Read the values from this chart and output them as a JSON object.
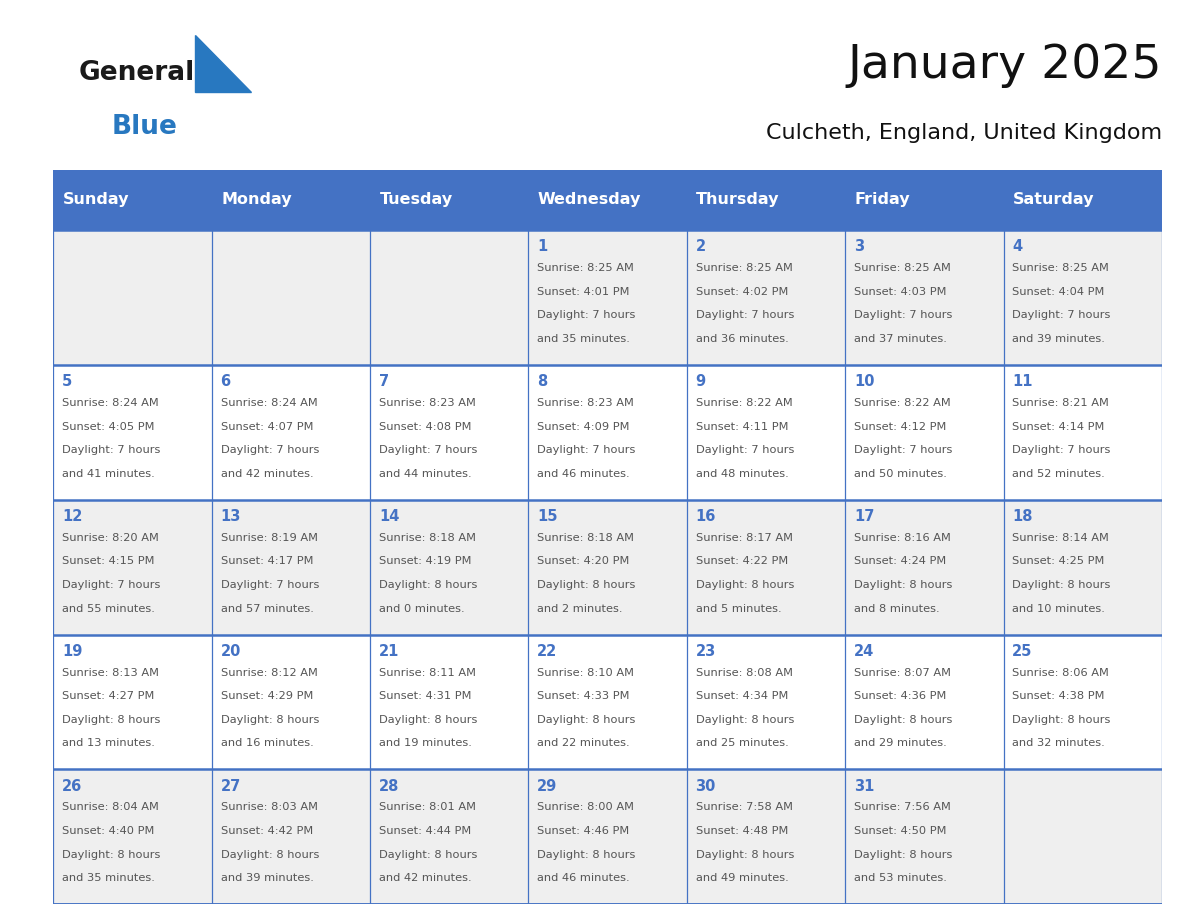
{
  "title": "January 2025",
  "subtitle": "Culcheth, England, United Kingdom",
  "header_bg_color": "#4472C4",
  "header_text_color": "#FFFFFF",
  "row_bg_light": "#EFEFEF",
  "row_bg_white": "#FFFFFF",
  "border_color": "#4472C4",
  "text_color": "#555555",
  "day_num_color": "#4472C4",
  "days_of_week": [
    "Sunday",
    "Monday",
    "Tuesday",
    "Wednesday",
    "Thursday",
    "Friday",
    "Saturday"
  ],
  "logo_general_color": "#1a1a1a",
  "logo_blue_color": "#2878C0",
  "calendar_data": [
    [
      {
        "day": "",
        "sunrise": "",
        "sunset": "",
        "daylight_h": "",
        "daylight_m": ""
      },
      {
        "day": "",
        "sunrise": "",
        "sunset": "",
        "daylight_h": "",
        "daylight_m": ""
      },
      {
        "day": "",
        "sunrise": "",
        "sunset": "",
        "daylight_h": "",
        "daylight_m": ""
      },
      {
        "day": "1",
        "sunrise": "8:25 AM",
        "sunset": "4:01 PM",
        "daylight_h": "7 hours",
        "daylight_m": "and 35 minutes."
      },
      {
        "day": "2",
        "sunrise": "8:25 AM",
        "sunset": "4:02 PM",
        "daylight_h": "7 hours",
        "daylight_m": "and 36 minutes."
      },
      {
        "day": "3",
        "sunrise": "8:25 AM",
        "sunset": "4:03 PM",
        "daylight_h": "7 hours",
        "daylight_m": "and 37 minutes."
      },
      {
        "day": "4",
        "sunrise": "8:25 AM",
        "sunset": "4:04 PM",
        "daylight_h": "7 hours",
        "daylight_m": "and 39 minutes."
      }
    ],
    [
      {
        "day": "5",
        "sunrise": "8:24 AM",
        "sunset": "4:05 PM",
        "daylight_h": "7 hours",
        "daylight_m": "and 41 minutes."
      },
      {
        "day": "6",
        "sunrise": "8:24 AM",
        "sunset": "4:07 PM",
        "daylight_h": "7 hours",
        "daylight_m": "and 42 minutes."
      },
      {
        "day": "7",
        "sunrise": "8:23 AM",
        "sunset": "4:08 PM",
        "daylight_h": "7 hours",
        "daylight_m": "and 44 minutes."
      },
      {
        "day": "8",
        "sunrise": "8:23 AM",
        "sunset": "4:09 PM",
        "daylight_h": "7 hours",
        "daylight_m": "and 46 minutes."
      },
      {
        "day": "9",
        "sunrise": "8:22 AM",
        "sunset": "4:11 PM",
        "daylight_h": "7 hours",
        "daylight_m": "and 48 minutes."
      },
      {
        "day": "10",
        "sunrise": "8:22 AM",
        "sunset": "4:12 PM",
        "daylight_h": "7 hours",
        "daylight_m": "and 50 minutes."
      },
      {
        "day": "11",
        "sunrise": "8:21 AM",
        "sunset": "4:14 PM",
        "daylight_h": "7 hours",
        "daylight_m": "and 52 minutes."
      }
    ],
    [
      {
        "day": "12",
        "sunrise": "8:20 AM",
        "sunset": "4:15 PM",
        "daylight_h": "7 hours",
        "daylight_m": "and 55 minutes."
      },
      {
        "day": "13",
        "sunrise": "8:19 AM",
        "sunset": "4:17 PM",
        "daylight_h": "7 hours",
        "daylight_m": "and 57 minutes."
      },
      {
        "day": "14",
        "sunrise": "8:18 AM",
        "sunset": "4:19 PM",
        "daylight_h": "8 hours",
        "daylight_m": "and 0 minutes."
      },
      {
        "day": "15",
        "sunrise": "8:18 AM",
        "sunset": "4:20 PM",
        "daylight_h": "8 hours",
        "daylight_m": "and 2 minutes."
      },
      {
        "day": "16",
        "sunrise": "8:17 AM",
        "sunset": "4:22 PM",
        "daylight_h": "8 hours",
        "daylight_m": "and 5 minutes."
      },
      {
        "day": "17",
        "sunrise": "8:16 AM",
        "sunset": "4:24 PM",
        "daylight_h": "8 hours",
        "daylight_m": "and 8 minutes."
      },
      {
        "day": "18",
        "sunrise": "8:14 AM",
        "sunset": "4:25 PM",
        "daylight_h": "8 hours",
        "daylight_m": "and 10 minutes."
      }
    ],
    [
      {
        "day": "19",
        "sunrise": "8:13 AM",
        "sunset": "4:27 PM",
        "daylight_h": "8 hours",
        "daylight_m": "and 13 minutes."
      },
      {
        "day": "20",
        "sunrise": "8:12 AM",
        "sunset": "4:29 PM",
        "daylight_h": "8 hours",
        "daylight_m": "and 16 minutes."
      },
      {
        "day": "21",
        "sunrise": "8:11 AM",
        "sunset": "4:31 PM",
        "daylight_h": "8 hours",
        "daylight_m": "and 19 minutes."
      },
      {
        "day": "22",
        "sunrise": "8:10 AM",
        "sunset": "4:33 PM",
        "daylight_h": "8 hours",
        "daylight_m": "and 22 minutes."
      },
      {
        "day": "23",
        "sunrise": "8:08 AM",
        "sunset": "4:34 PM",
        "daylight_h": "8 hours",
        "daylight_m": "and 25 minutes."
      },
      {
        "day": "24",
        "sunrise": "8:07 AM",
        "sunset": "4:36 PM",
        "daylight_h": "8 hours",
        "daylight_m": "and 29 minutes."
      },
      {
        "day": "25",
        "sunrise": "8:06 AM",
        "sunset": "4:38 PM",
        "daylight_h": "8 hours",
        "daylight_m": "and 32 minutes."
      }
    ],
    [
      {
        "day": "26",
        "sunrise": "8:04 AM",
        "sunset": "4:40 PM",
        "daylight_h": "8 hours",
        "daylight_m": "and 35 minutes."
      },
      {
        "day": "27",
        "sunrise": "8:03 AM",
        "sunset": "4:42 PM",
        "daylight_h": "8 hours",
        "daylight_m": "and 39 minutes."
      },
      {
        "day": "28",
        "sunrise": "8:01 AM",
        "sunset": "4:44 PM",
        "daylight_h": "8 hours",
        "daylight_m": "and 42 minutes."
      },
      {
        "day": "29",
        "sunrise": "8:00 AM",
        "sunset": "4:46 PM",
        "daylight_h": "8 hours",
        "daylight_m": "and 46 minutes."
      },
      {
        "day": "30",
        "sunrise": "7:58 AM",
        "sunset": "4:48 PM",
        "daylight_h": "8 hours",
        "daylight_m": "and 49 minutes."
      },
      {
        "day": "31",
        "sunrise": "7:56 AM",
        "sunset": "4:50 PM",
        "daylight_h": "8 hours",
        "daylight_m": "and 53 minutes."
      },
      {
        "day": "",
        "sunrise": "",
        "sunset": "",
        "daylight_h": "",
        "daylight_m": ""
      }
    ]
  ]
}
